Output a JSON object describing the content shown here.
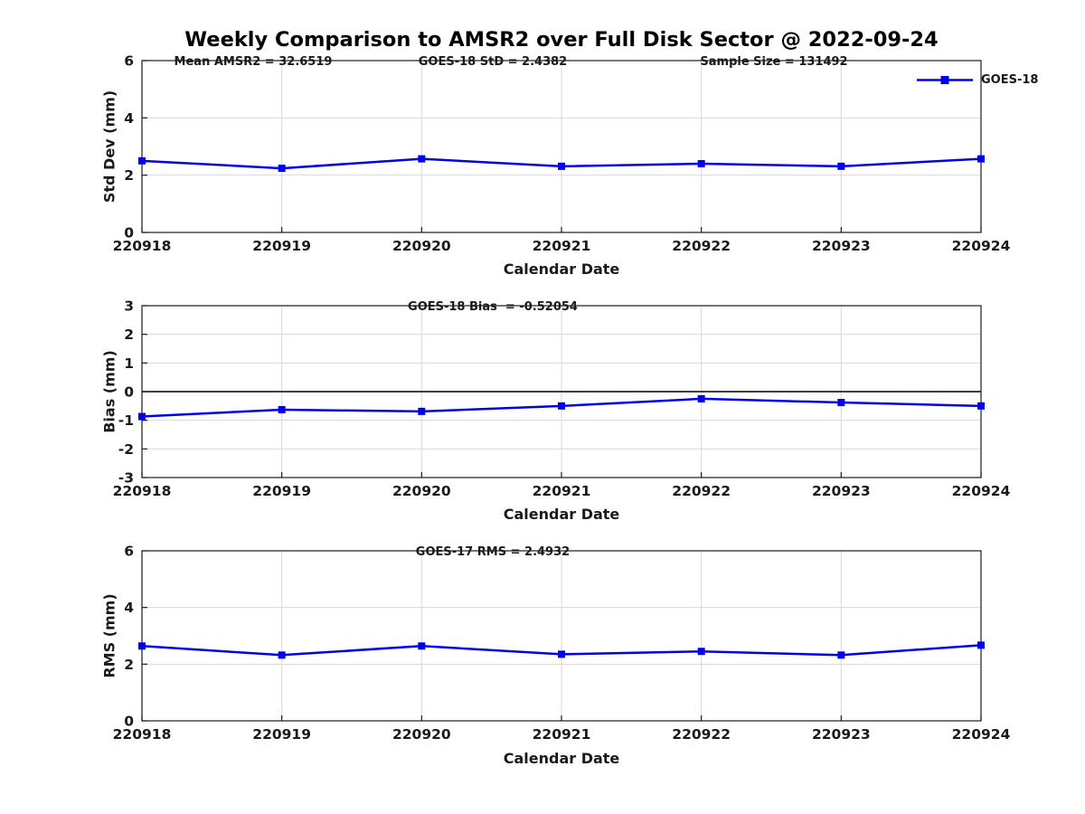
{
  "title": "Weekly Comparison to AMSR2 over Full Disk Sector @ 2022-09-24",
  "colors": {
    "line": "#0000EE",
    "marker": "#0000EE",
    "grid": "#d8d8d8",
    "axis": "#1a1a1a",
    "text": "#1a1a1a",
    "zero_line": "#000000",
    "background": "#ffffff"
  },
  "chart_data": [
    {
      "type": "line",
      "categories": [
        "220918",
        "220919",
        "220920",
        "220921",
        "220922",
        "220923",
        "220924"
      ],
      "series": [
        {
          "name": "GOES-18",
          "values": [
            2.5,
            2.24,
            2.57,
            2.31,
            2.4,
            2.31,
            2.57
          ],
          "marker": "square"
        }
      ],
      "ylabel": "Std Dev (mm)",
      "xlabel": "Calendar Date",
      "ylim": [
        0,
        6
      ],
      "yticks": [
        0,
        2,
        4,
        6
      ],
      "grid": true,
      "zero_line": false,
      "legend_position": "top-right",
      "annotations": [
        "Mean AMSR2 = 32.6519",
        "GOES-18 StD = 2.4382",
        "Sample Size = 131492"
      ]
    },
    {
      "type": "line",
      "categories": [
        "220918",
        "220919",
        "220920",
        "220921",
        "220922",
        "220923",
        "220924"
      ],
      "series": [
        {
          "name": "GOES-18",
          "values": [
            -0.87,
            -0.63,
            -0.69,
            -0.5,
            -0.25,
            -0.38,
            -0.5
          ],
          "marker": "square"
        }
      ],
      "ylabel": "Bias (mm)",
      "xlabel": "Calendar Date",
      "ylim": [
        -3,
        3
      ],
      "yticks": [
        -3,
        -2,
        -1,
        0,
        1,
        2,
        3
      ],
      "grid": true,
      "zero_line": true,
      "legend_position": "none",
      "annotations": [
        "GOES-18 Bias  = -0.52054"
      ]
    },
    {
      "type": "line",
      "categories": [
        "220918",
        "220919",
        "220920",
        "220921",
        "220922",
        "220923",
        "220924"
      ],
      "series": [
        {
          "name": "GOES-18",
          "values": [
            2.64,
            2.32,
            2.64,
            2.35,
            2.45,
            2.32,
            2.67
          ],
          "marker": "square"
        }
      ],
      "ylabel": "RMS (mm)",
      "xlabel": "Calendar Date",
      "ylim": [
        0,
        6
      ],
      "yticks": [
        0,
        2,
        4,
        6
      ],
      "grid": true,
      "zero_line": false,
      "legend_position": "none",
      "annotations": [
        "GOES-17 RMS = 2.4932"
      ]
    }
  ]
}
